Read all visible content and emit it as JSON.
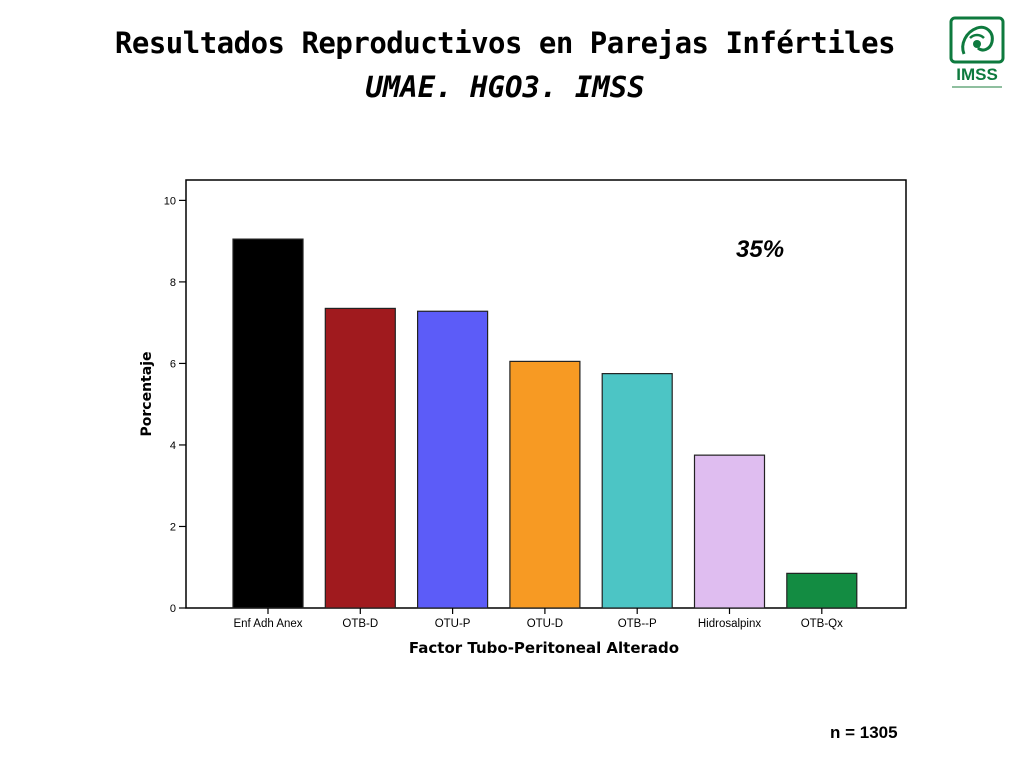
{
  "page": {
    "title": "Resultados Reproductivos en Parejas Infértiles",
    "subtitle": "UMAE. HGO3. IMSS",
    "logo_text": "IMSS",
    "logo_color": "#0e7a3e",
    "annotation": "35%",
    "sample_size": "n = 1305"
  },
  "chart_data": {
    "type": "bar",
    "title": "",
    "xlabel": "Factor Tubo-Peritoneal Alterado",
    "ylabel": "Porcentaje",
    "ylim": [
      0,
      10.5
    ],
    "yticks": [
      0,
      2,
      4,
      6,
      8,
      10
    ],
    "grid": false,
    "legend": "none",
    "categories": [
      "Enf Adh Anex",
      "OTB-D",
      "OTU-P",
      "OTU-D",
      "OTB--P",
      "Hidrosalpinx",
      "OTB-Qx"
    ],
    "values": [
      9.05,
      7.35,
      7.28,
      6.05,
      5.75,
      3.75,
      0.85
    ],
    "colors": [
      "#000000",
      "#a01a1e",
      "#5c5cf8",
      "#f79a23",
      "#4cc5c5",
      "#dfbdf0",
      "#138c42"
    ]
  }
}
